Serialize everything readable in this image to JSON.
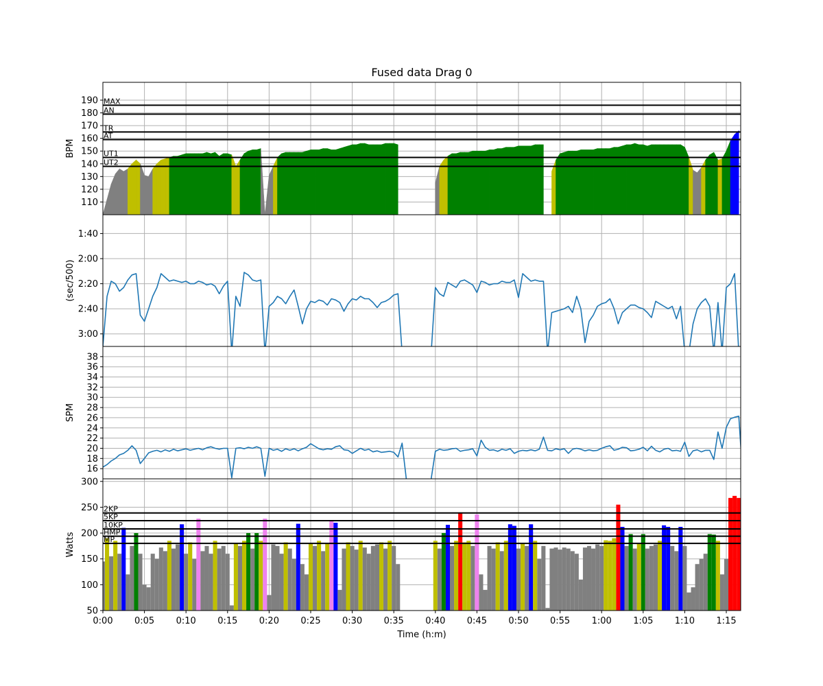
{
  "chart_data": {
    "type": "area",
    "title": "Fused data Drag 0",
    "xlabel": "Time (h:m)",
    "xlim": [
      "0:00:00",
      "1:16:44"
    ],
    "x_ticks": [
      "0:00",
      "0:05",
      "0:10",
      "0:15",
      "0:20",
      "0:25",
      "0:30",
      "0:35",
      "0:40",
      "0:45",
      "0:50",
      "0:55",
      "1:00",
      "1:05",
      "1:10",
      "1:15"
    ],
    "grid": true,
    "time": [
      "0:00:00",
      "0:00:30",
      "0:01:00",
      "0:01:30",
      "0:02:00",
      "0:02:30",
      "0:03:00",
      "0:03:30",
      "0:04:00",
      "0:04:30",
      "0:05:00",
      "0:05:30",
      "0:06:00",
      "0:06:30",
      "0:07:00",
      "0:07:30",
      "0:08:00",
      "0:08:30",
      "0:09:00",
      "0:09:30",
      "0:10:00",
      "0:10:30",
      "0:11:00",
      "0:11:30",
      "0:12:00",
      "0:12:30",
      "0:13:00",
      "0:13:30",
      "0:14:00",
      "0:14:30",
      "0:15:00",
      "0:15:30",
      "0:16:00",
      "0:16:30",
      "0:17:00",
      "0:17:30",
      "0:18:00",
      "0:18:30",
      "0:19:00",
      "0:19:30",
      "0:20:00",
      "0:20:30",
      "0:21:00",
      "0:21:30",
      "0:22:00",
      "0:22:30",
      "0:23:00",
      "0:23:30",
      "0:24:00",
      "0:24:30",
      "0:25:00",
      "0:25:30",
      "0:26:00",
      "0:26:30",
      "0:27:00",
      "0:27:30",
      "0:28:00",
      "0:28:30",
      "0:29:00",
      "0:29:30",
      "0:30:00",
      "0:30:30",
      "0:31:00",
      "0:31:30",
      "0:32:00",
      "0:32:30",
      "0:33:00",
      "0:33:30",
      "0:34:00",
      "0:34:30",
      "0:35:00",
      "0:35:30",
      "0:36:00",
      "0:36:30",
      "0:37:00",
      "0:37:30",
      "0:38:00",
      "0:38:30",
      "0:39:00",
      "0:39:30",
      "0:40:00",
      "0:40:30",
      "0:41:00",
      "0:41:30",
      "0:42:00",
      "0:42:30",
      "0:43:00",
      "0:43:30",
      "0:44:00",
      "0:44:30",
      "0:45:00",
      "0:45:30",
      "0:46:00",
      "0:46:30",
      "0:47:00",
      "0:47:30",
      "0:48:00",
      "0:48:30",
      "0:49:00",
      "0:49:30",
      "0:50:00",
      "0:50:30",
      "0:51:00",
      "0:51:30",
      "0:52:00",
      "0:52:30",
      "0:53:00",
      "0:53:30",
      "0:54:00",
      "0:54:30",
      "0:55:00",
      "0:55:30",
      "0:56:00",
      "0:56:30",
      "0:57:00",
      "0:57:30",
      "0:58:00",
      "0:58:30",
      "0:59:00",
      "0:59:30",
      "1:00:00",
      "1:00:30",
      "1:01:00",
      "1:01:30",
      "1:02:00",
      "1:02:30",
      "1:03:00",
      "1:03:30",
      "1:04:00",
      "1:04:30",
      "1:05:00",
      "1:05:30",
      "1:06:00",
      "1:06:30",
      "1:07:00",
      "1:07:30",
      "1:08:00",
      "1:08:30",
      "1:09:00",
      "1:09:30",
      "1:10:00",
      "1:10:30",
      "1:11:00",
      "1:11:30",
      "1:12:00",
      "1:12:30",
      "1:13:00",
      "1:13:30",
      "1:14:00",
      "1:14:30",
      "1:15:00",
      "1:15:30",
      "1:16:00",
      "1:16:30",
      "1:17:00"
    ],
    "panels": [
      {
        "id": "hr",
        "ylabel": "BPM",
        "kind": "zone-area",
        "ylim": [
          100,
          204
        ],
        "y_ticks": [
          "110",
          "120",
          "130",
          "140",
          "150",
          "160",
          "170",
          "180",
          "190"
        ],
        "reference_lines": [
          {
            "label": "MAX",
            "value": 186
          },
          {
            "label": "AN",
            "value": 179
          },
          {
            "label": "TR",
            "value": 165
          },
          {
            "label": "AT",
            "value": 159
          },
          {
            "label": "UT1",
            "value": 145
          },
          {
            "label": "UT2",
            "value": 138
          }
        ],
        "zone_colors": [
          "#808080",
          "#bfbf00",
          "#008000",
          "#0000ff",
          "#ee82ee",
          "#ff0000"
        ],
        "values": [
          100,
          112,
          124,
          132,
          136,
          134,
          136,
          140,
          143,
          140,
          131,
          130,
          136,
          140,
          143,
          144,
          145,
          146,
          146,
          147,
          148,
          148,
          148,
          148,
          148,
          149,
          148,
          149,
          146,
          148,
          148,
          147,
          138,
          143,
          148,
          150,
          151,
          151,
          152,
          100,
          131,
          138,
          145,
          148,
          149,
          149,
          149,
          149,
          149,
          150,
          151,
          151,
          151,
          152,
          152,
          151,
          151,
          152,
          153,
          154,
          155,
          155,
          156,
          156,
          155,
          155,
          155,
          155,
          156,
          156,
          156,
          155,
          null,
          null,
          null,
          null,
          null,
          null,
          null,
          null,
          125,
          138,
          143,
          146,
          148,
          148,
          149,
          149,
          149,
          150,
          150,
          150,
          150,
          151,
          151,
          152,
          152,
          153,
          153,
          153,
          154,
          154,
          154,
          154,
          155,
          155,
          155,
          null,
          134,
          143,
          148,
          149,
          150,
          150,
          150,
          151,
          151,
          151,
          151,
          152,
          152,
          152,
          152,
          153,
          153,
          154,
          155,
          155,
          156,
          155,
          155,
          154,
          155,
          155,
          155,
          155,
          155,
          155,
          155,
          155,
          153,
          145,
          135,
          133,
          137,
          143,
          147,
          149,
          143,
          144,
          150,
          158,
          163,
          166,
          null
        ]
      },
      {
        "id": "pace",
        "ylabel": "(sec/500)",
        "kind": "line",
        "ylim": [
          "3:10",
          "1:25"
        ],
        "y_ticks": [
          "1:40",
          "2:00",
          "2:20",
          "2:40",
          "3:00"
        ],
        "line_color": "#1f77b4",
        "values": [
          "3:10",
          "2:30",
          "2:18",
          "2:20",
          "2:26",
          "2:23",
          "2:17",
          "2:13",
          "2:12",
          "2:45",
          "2:50",
          "2:40",
          "2:30",
          "2:23",
          "2:12",
          "2:15",
          "2:18",
          "2:17",
          "2:18",
          "2:19",
          "2:18",
          "2:20",
          "2:20",
          "2:18",
          "2:19",
          "2:21",
          "2:20",
          "2:22",
          "2:28",
          "2:22",
          "2:18",
          "3:15",
          "2:30",
          "2:38",
          "2:11",
          "2:13",
          "2:17",
          "2:18",
          "2:17",
          "3:15",
          "2:38",
          "2:35",
          "2:30",
          "2:32",
          "2:36",
          "2:30",
          "2:25",
          "2:38",
          "2:52",
          "2:40",
          "2:34",
          "2:35",
          "2:33",
          "2:34",
          "2:37",
          "2:32",
          "2:33",
          "2:35",
          "2:42",
          "2:36",
          "2:32",
          "2:33",
          "2:30",
          "2:32",
          "2:32",
          "2:35",
          "2:39",
          "2:35",
          "2:34",
          "2:32",
          "2:29",
          "2:28",
          "3:15",
          null,
          null,
          null,
          null,
          null,
          null,
          "3:15",
          "2:23",
          "2:28",
          "2:30",
          "2:19",
          "2:21",
          "2:23",
          "2:18",
          "2:17",
          "2:19",
          "2:21",
          "2:27",
          "2:18",
          "2:19",
          "2:21",
          "2:20",
          "2:20",
          "2:18",
          "2:19",
          "2:19",
          "2:17",
          "2:31",
          "2:12",
          "2:15",
          "2:18",
          "2:17",
          "2:18",
          "2:18",
          "3:15",
          "2:43",
          "2:42",
          "2:41",
          "2:40",
          "2:38",
          "2:43",
          "2:30",
          "2:40",
          "3:07",
          "2:50",
          "2:45",
          "2:38",
          "2:36",
          "2:35",
          "2:32",
          "2:40",
          "2:52",
          "2:43",
          "2:40",
          "2:37",
          "2:37",
          "2:39",
          "2:40",
          "2:43",
          "2:47",
          "2:34",
          "2:36",
          "2:38",
          "2:40",
          "2:38",
          "2:48",
          "2:38",
          "3:15",
          "3:15",
          "2:52",
          "2:40",
          "2:35",
          "2:32",
          "2:38",
          "3:15",
          "2:35",
          "3:15",
          "2:23",
          "2:20",
          "2:12",
          "3:15",
          null
        ]
      },
      {
        "id": "spm",
        "ylabel": "SPM",
        "kind": "line",
        "ylim": [
          14,
          40
        ],
        "y_ticks": [
          "16",
          "18",
          "20",
          "22",
          "24",
          "26",
          "28",
          "30",
          "32",
          "34",
          "36",
          "38"
        ],
        "line_color": "#1f77b4",
        "values": [
          16.3,
          16.8,
          17.5,
          18.0,
          18.7,
          19.0,
          19.6,
          20.5,
          19.6,
          17.0,
          18.0,
          19.1,
          19.4,
          19.6,
          19.3,
          19.7,
          19.4,
          19.8,
          19.5,
          19.7,
          19.9,
          19.6,
          19.8,
          20.0,
          19.7,
          20.1,
          20.3,
          20.0,
          19.8,
          20.0,
          20.0,
          14.2,
          20.0,
          20.1,
          19.9,
          20.2,
          20.0,
          20.3,
          20.0,
          14.5,
          20.0,
          19.6,
          19.8,
          19.4,
          19.9,
          19.6,
          19.9,
          19.5,
          19.9,
          20.2,
          20.9,
          20.4,
          19.9,
          19.7,
          19.9,
          19.8,
          20.3,
          20.5,
          19.7,
          19.6,
          19.0,
          19.5,
          20.0,
          19.6,
          19.8,
          19.3,
          19.5,
          19.2,
          19.3,
          19.4,
          19.2,
          18.3,
          21.0,
          14.0,
          null,
          null,
          null,
          null,
          null,
          14.0,
          19.4,
          19.8,
          19.6,
          19.7,
          19.9,
          20.0,
          19.4,
          19.6,
          19.7,
          19.9,
          18.5,
          21.6,
          20.2,
          19.6,
          19.7,
          19.4,
          19.8,
          19.6,
          19.9,
          19.0,
          19.4,
          19.6,
          19.5,
          19.7,
          19.5,
          19.8,
          22.2,
          19.6,
          19.5,
          19.9,
          19.7,
          19.9,
          19.0,
          19.8,
          20.0,
          19.8,
          19.5,
          19.7,
          19.5,
          19.6,
          20.0,
          20.3,
          20.5,
          19.6,
          19.8,
          20.2,
          20.1,
          19.5,
          19.6,
          19.8,
          20.2,
          19.5,
          20.4,
          19.6,
          19.3,
          19.8,
          20.0,
          19.5,
          19.6,
          19.4,
          21.2,
          18.4,
          19.5,
          19.7,
          19.3,
          19.6,
          19.6,
          17.8,
          23.2,
          20.0,
          24.1,
          25.8,
          26.1,
          26.3,
          14.0
        ]
      },
      {
        "id": "power",
        "ylabel": "Watts",
        "kind": "zone-bars",
        "ylim": [
          50,
          305
        ],
        "y_ticks": [
          "50",
          "100",
          "150",
          "200",
          "250",
          "300"
        ],
        "reference_lines": [
          {
            "label": "2KP",
            "value": 239
          },
          {
            "label": "5KP",
            "value": 224
          },
          {
            "label": "10KP",
            "value": 208
          },
          {
            "label": "HMP",
            "value": 194
          },
          {
            "label": "MP",
            "value": 180
          }
        ],
        "zone_colors": [
          "#808080",
          "#bfbf00",
          "#008000",
          "#0000ff",
          "#ee82ee",
          "#ff0000"
        ],
        "values": [
          145,
          190,
          155,
          185,
          160,
          210,
          120,
          175,
          200,
          160,
          100,
          95,
          160,
          150,
          172,
          165,
          185,
          170,
          178,
          217,
          160,
          182,
          150,
          228,
          165,
          175,
          160,
          185,
          170,
          175,
          160,
          60,
          180,
          175,
          185,
          200,
          170,
          200,
          185,
          228,
          80,
          178,
          175,
          160,
          182,
          170,
          150,
          218,
          140,
          120,
          180,
          175,
          185,
          165,
          180,
          225,
          220,
          90,
          170,
          182,
          175,
          168,
          185,
          172,
          160,
          175,
          178,
          182,
          170,
          185,
          175,
          140,
          null,
          null,
          null,
          null,
          null,
          null,
          null,
          null,
          185,
          170,
          200,
          216,
          175,
          185,
          240,
          182,
          185,
          175,
          236,
          120,
          90,
          175,
          170,
          182,
          165,
          185,
          217,
          214,
          170,
          180,
          175,
          217,
          185,
          150,
          175,
          55,
          170,
          172,
          168,
          172,
          170,
          165,
          160,
          110,
          172,
          175,
          170,
          178,
          175,
          186,
          185,
          190,
          255,
          212,
          175,
          198,
          170,
          180,
          198,
          170,
          175,
          178,
          185,
          215,
          212,
          175,
          165,
          212,
          175,
          85,
          95,
          140,
          150,
          160,
          198,
          197,
          185,
          120,
          150,
          268,
          272,
          268,
          null
        ]
      }
    ]
  }
}
